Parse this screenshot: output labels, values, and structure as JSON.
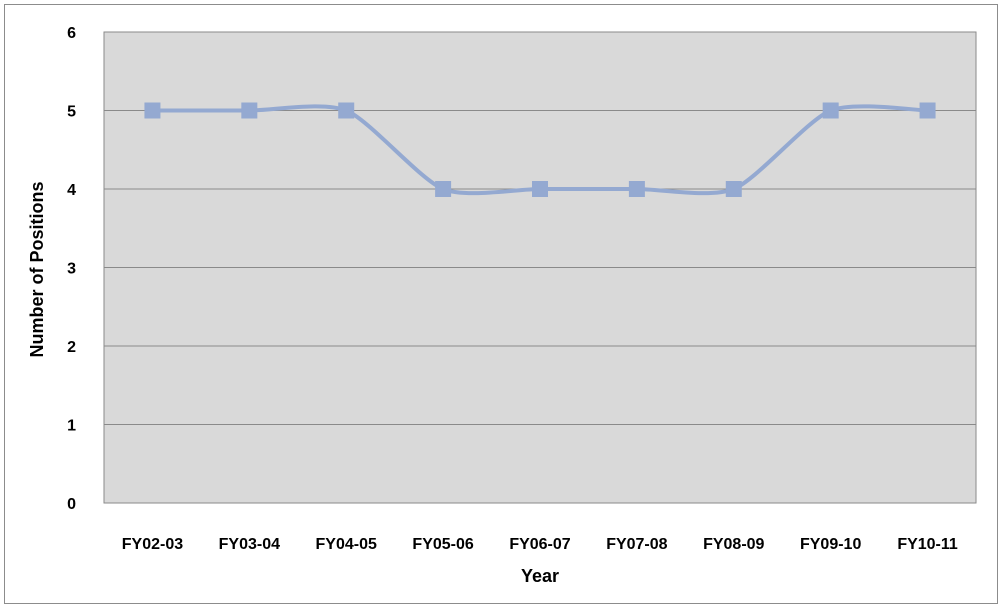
{
  "chart_data": {
    "type": "line",
    "title": "",
    "xlabel": "Year",
    "ylabel": "Number of Positions",
    "categories": [
      "FY02-03",
      "FY03-04",
      "FY04-05",
      "FY05-06",
      "FY06-07",
      "FY07-08",
      "FY08-09",
      "FY09-10",
      "FY10-11"
    ],
    "series": [
      {
        "values": [
          5,
          5,
          5,
          4,
          4,
          4,
          4,
          5,
          5
        ],
        "color": "#94a9d1",
        "marker": "square"
      }
    ],
    "ylim": [
      0,
      6
    ],
    "yticks": [
      0,
      1,
      2,
      3,
      4,
      5,
      6
    ],
    "grid": true,
    "legend": "none",
    "plot_background": "#d9d9d9",
    "gridline_color": "#8a8a8a"
  }
}
